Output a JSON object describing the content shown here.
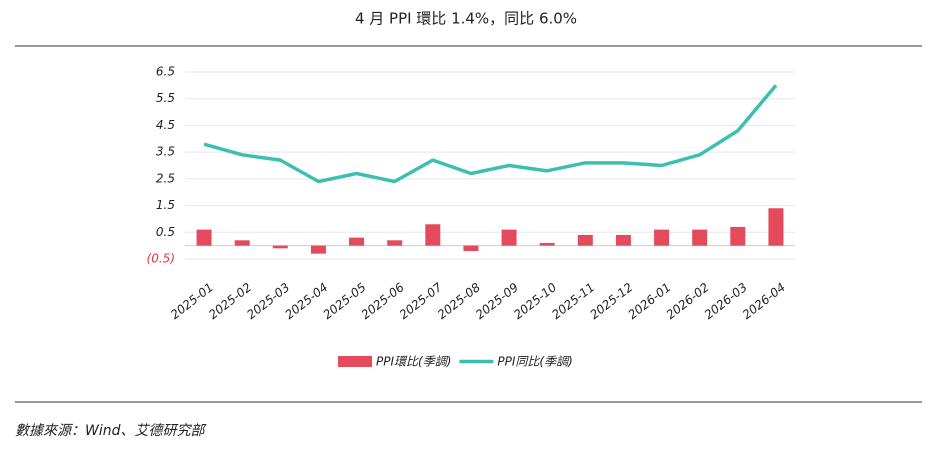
{
  "chart_data": {
    "type": "bar_line",
    "title": "4 月 PPI 環比 1.4%，同比 6.0%",
    "source": "數據來源：Wind、艾德研究部",
    "categories": [
      "2025-01",
      "2025-02",
      "2025-03",
      "2025-04",
      "2025-05",
      "2025-06",
      "2025-07",
      "2025-08",
      "2025-09",
      "2025-10",
      "2025-11",
      "2025-12",
      "2026-01",
      "2026-02",
      "2026-03",
      "2026-04"
    ],
    "series": [
      {
        "name": "PPI環比(季調)",
        "type": "bar",
        "color": "#e34b5c",
        "values": [
          0.6,
          0.2,
          -0.1,
          -0.3,
          0.3,
          0.2,
          0.8,
          -0.2,
          0.6,
          0.1,
          0.4,
          0.4,
          0.6,
          0.6,
          0.7,
          1.4
        ]
      },
      {
        "name": "PPI同比(季調)",
        "type": "line",
        "color": "#3cbfb1",
        "values": [
          3.8,
          3.4,
          3.2,
          2.4,
          2.7,
          2.4,
          3.2,
          2.7,
          3.0,
          2.8,
          3.1,
          3.1,
          3.0,
          3.4,
          4.3,
          6.0
        ]
      }
    ],
    "ylim": [
      -0.5,
      6.5
    ],
    "yticks": [
      {
        "value": -0.5,
        "label": "(0.5)"
      },
      0.5,
      1.5,
      2.5,
      3.5,
      4.5,
      5.5,
      6.5
    ],
    "grid": true
  }
}
